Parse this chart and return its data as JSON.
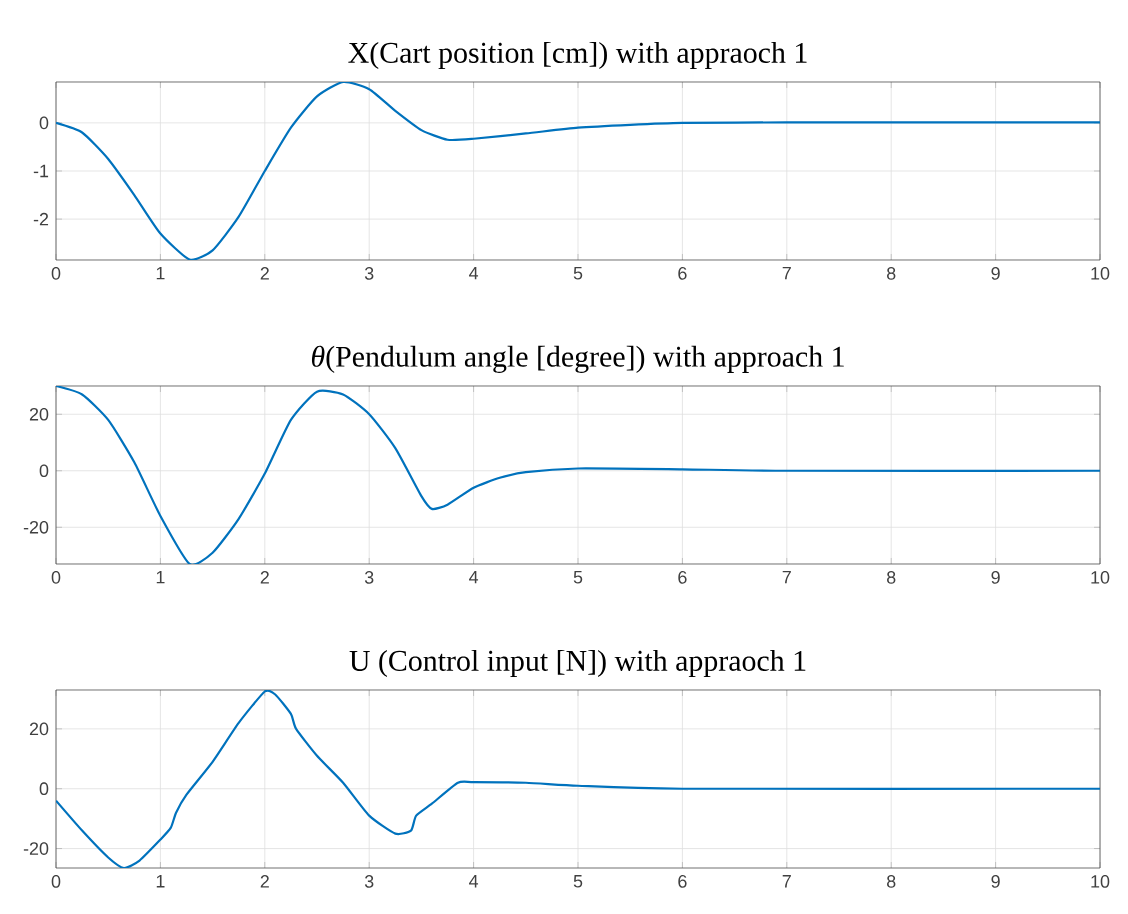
{
  "chart_data": [
    {
      "type": "line",
      "title": "X(Cart position [cm]) with appraoch 1",
      "xlim": [
        0,
        10
      ],
      "xticks": [
        0,
        1,
        2,
        3,
        4,
        5,
        6,
        7,
        8,
        9,
        10
      ],
      "ylim": [
        -2.85,
        0.85
      ],
      "yticks": [
        -2,
        -1,
        0
      ],
      "grid": true,
      "series": [
        {
          "color": "#0072bd",
          "x": [
            0,
            0.25,
            0.5,
            0.75,
            1.0,
            1.28,
            1.5,
            1.75,
            2.0,
            2.25,
            2.5,
            2.75,
            3.0,
            3.25,
            3.5,
            3.75,
            4.0,
            4.5,
            5.0,
            5.5,
            6,
            7,
            8,
            10
          ],
          "values": [
            0,
            -0.2,
            -0.75,
            -1.5,
            -2.3,
            -2.84,
            -2.65,
            -1.95,
            -1.0,
            -0.1,
            0.55,
            0.85,
            0.7,
            0.25,
            -0.15,
            -0.35,
            -0.33,
            -0.22,
            -0.1,
            -0.04,
            0,
            0.01,
            0.01,
            0.01
          ]
        }
      ]
    },
    {
      "type": "line",
      "title": "*θ*(Pendulum angle [degree]) with approach 1",
      "xlim": [
        0,
        10
      ],
      "xticks": [
        0,
        1,
        2,
        3,
        4,
        5,
        6,
        7,
        8,
        9,
        10
      ],
      "ylim": [
        -33,
        30
      ],
      "yticks": [
        -20,
        0,
        20
      ],
      "grid": true,
      "series": [
        {
          "color": "#0072bd",
          "x": [
            0,
            0.25,
            0.5,
            0.75,
            1.0,
            1.28,
            1.5,
            1.75,
            2.0,
            2.25,
            2.5,
            2.75,
            3.0,
            3.25,
            3.5,
            3.6,
            3.75,
            4.0,
            4.25,
            4.5,
            5,
            6,
            7,
            10
          ],
          "values": [
            30,
            27,
            18,
            3,
            -16,
            -33,
            -29,
            -17,
            -1,
            18,
            28,
            27,
            20,
            8,
            -9,
            -13.5,
            -12,
            -6,
            -2.5,
            -0.5,
            0.8,
            0.5,
            0,
            0
          ]
        }
      ]
    },
    {
      "type": "line",
      "title": "U (Control input [N]) with appraoch 1",
      "xlim": [
        0,
        10
      ],
      "xticks": [
        0,
        1,
        2,
        3,
        4,
        5,
        6,
        7,
        8,
        9,
        10
      ],
      "ylim": [
        -26.5,
        33
      ],
      "yticks": [
        -20,
        0,
        20
      ],
      "grid": true,
      "series": [
        {
          "color": "#0072bd",
          "x": [
            0,
            0.25,
            0.5,
            0.65,
            0.8,
            1.0,
            1.1,
            1.15,
            1.25,
            1.5,
            1.75,
            2.0,
            2.1,
            2.25,
            2.3,
            2.5,
            2.75,
            3.0,
            3.25,
            3.4,
            3.45,
            3.6,
            3.85,
            4.0,
            4.5,
            5,
            6,
            10
          ],
          "values": [
            -4,
            -14,
            -23,
            -26.5,
            -24,
            -17,
            -13,
            -8,
            -2,
            9,
            22,
            32.5,
            31.5,
            25,
            20,
            11,
            2,
            -9,
            -15,
            -14,
            -9,
            -5,
            2,
            2.2,
            2,
            1,
            0,
            0
          ]
        }
      ]
    }
  ]
}
